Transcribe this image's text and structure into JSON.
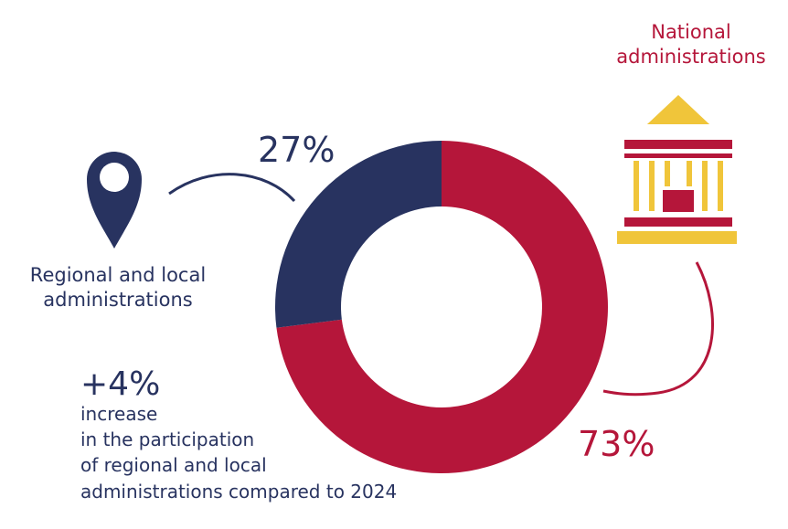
{
  "chart_data": {
    "type": "donut",
    "categories": [
      "National administrations",
      "Regional and local administrations"
    ],
    "values": [
      73,
      27
    ],
    "value_labels": [
      "73%",
      "27%"
    ],
    "colors": [
      "#b5163a",
      "#283360"
    ],
    "annotation": {
      "title": "+4%",
      "lines": [
        "increase",
        "in the participation",
        "of regional and local",
        "administrations compared to 2024"
      ]
    }
  }
}
